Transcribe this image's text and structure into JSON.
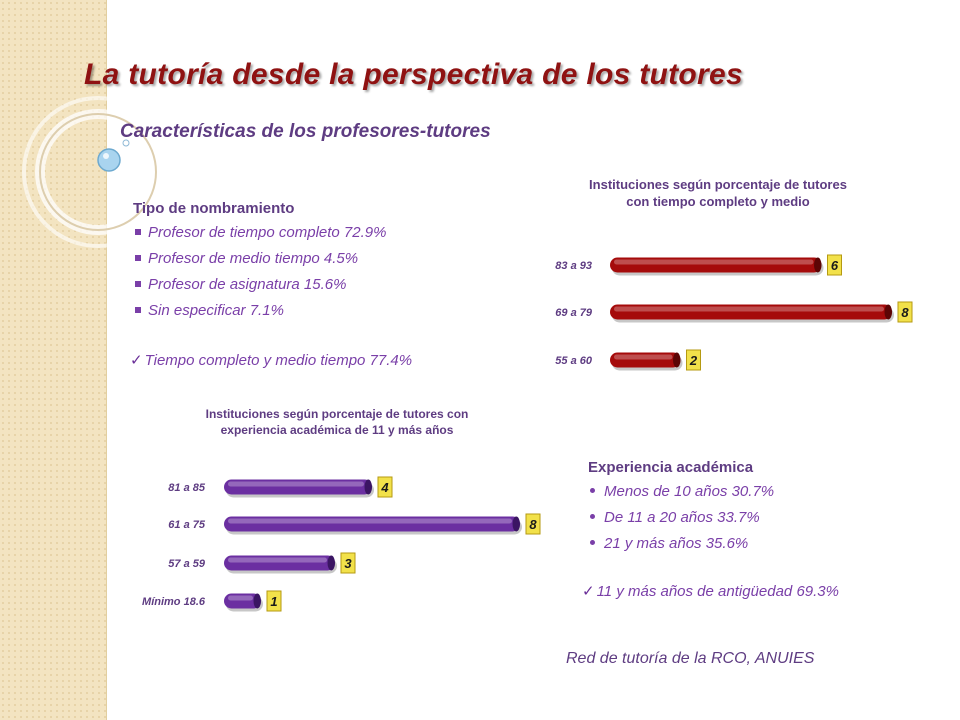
{
  "title": "La tutoría desde la perspectiva de los tutores",
  "subtitle": "Características de los profesores-tutores",
  "nombramiento": {
    "heading": "Tipo de nombramiento",
    "items": [
      "Profesor de tiempo completo  72.9%",
      "Profesor de medio tiempo  4.5%",
      "Profesor de asignatura  15.6%",
      "Sin especificar  7.1%"
    ],
    "check": "Tiempo completo y medio tiempo  77.4%"
  },
  "experiencia": {
    "heading": "Experiencia  académica",
    "items": [
      "Menos de 10 años  30.7%",
      "De 11 a 20 años   33.7%",
      "21 y más años  35.6%"
    ],
    "check": "11 y más años de antigüedad   69.3%"
  },
  "source": "Red de tutoría de la RCO, ANUIES",
  "colors": {
    "title": "#8f1212",
    "text": "#7a3fa8",
    "bar_red": "#a50b0b",
    "bar_purple": "#6b2fa1",
    "badge": "#f2e14a"
  },
  "chart_data": [
    {
      "type": "bar",
      "orientation": "horizontal",
      "title": "Instituciones según porcentaje de tutores con tiempo completo y medio",
      "categories": [
        "83  a 93",
        "69  a  79",
        "55  a  60"
      ],
      "values": [
        6,
        8,
        2
      ],
      "xlim": [
        0,
        8
      ]
    },
    {
      "type": "bar",
      "orientation": "horizontal",
      "title": "Instituciones según porcentaje de tutores con experiencia académica de 11 y más años",
      "categories": [
        "81  a   85",
        "61  a  75",
        "57  a  59",
        "Mínimo 18.6"
      ],
      "values": [
        4,
        8,
        3,
        1
      ],
      "xlim": [
        0,
        8
      ]
    }
  ]
}
